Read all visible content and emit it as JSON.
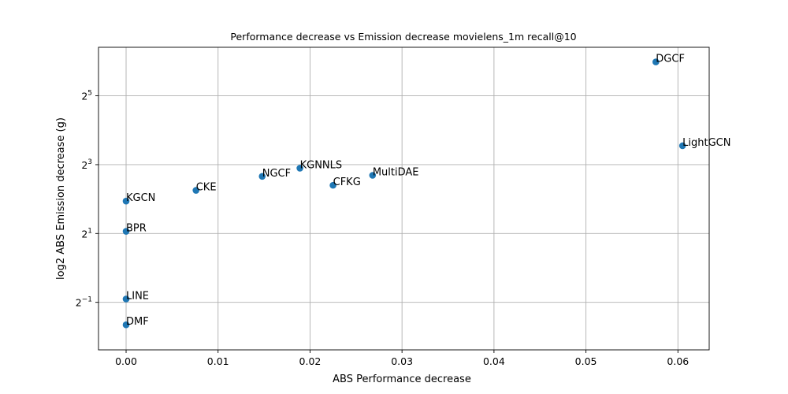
{
  "chart_data": {
    "type": "scatter",
    "title": "Performance decrease vs Emission decrease movielens_1m recall@10",
    "xlabel": "ABS Performance decrease",
    "ylabel": "log2 ABS Emission decrease (g)",
    "y_scale": "log2",
    "xlim": [
      -0.003,
      0.0634
    ],
    "ylim": [
      0.192,
      85
    ],
    "grid": true,
    "x_ticks": [
      {
        "value": 0.0,
        "label": "0.00"
      },
      {
        "value": 0.01,
        "label": "0.01"
      },
      {
        "value": 0.02,
        "label": "0.02"
      },
      {
        "value": 0.03,
        "label": "0.03"
      },
      {
        "value": 0.04,
        "label": "0.04"
      },
      {
        "value": 0.05,
        "label": "0.05"
      },
      {
        "value": 0.06,
        "label": "0.06"
      }
    ],
    "y_ticks": [
      {
        "value": 0.5,
        "base": "2",
        "exp": "−1"
      },
      {
        "value": 2,
        "base": "2",
        "exp": "1"
      },
      {
        "value": 8,
        "base": "2",
        "exp": "3"
      },
      {
        "value": 32,
        "base": "2",
        "exp": "5"
      }
    ],
    "points": [
      {
        "label": "DGCF",
        "x": 0.0576,
        "y": 63.3
      },
      {
        "label": "LightGCN",
        "x": 0.0605,
        "y": 11.7
      },
      {
        "label": "KGNNLS",
        "x": 0.0189,
        "y": 7.45
      },
      {
        "label": "MultiDAE",
        "x": 0.0268,
        "y": 6.45
      },
      {
        "label": "NGCF",
        "x": 0.0148,
        "y": 6.32
      },
      {
        "label": "CFKG",
        "x": 0.0225,
        "y": 5.28
      },
      {
        "label": "CKE",
        "x": 0.0076,
        "y": 4.77
      },
      {
        "label": "KGCN",
        "x": 0.0,
        "y": 3.84
      },
      {
        "label": "BPR",
        "x": 0.0,
        "y": 2.09
      },
      {
        "label": "LINE",
        "x": 0.0,
        "y": 0.535
      },
      {
        "label": "DMF",
        "x": 0.0,
        "y": 0.318
      }
    ]
  }
}
